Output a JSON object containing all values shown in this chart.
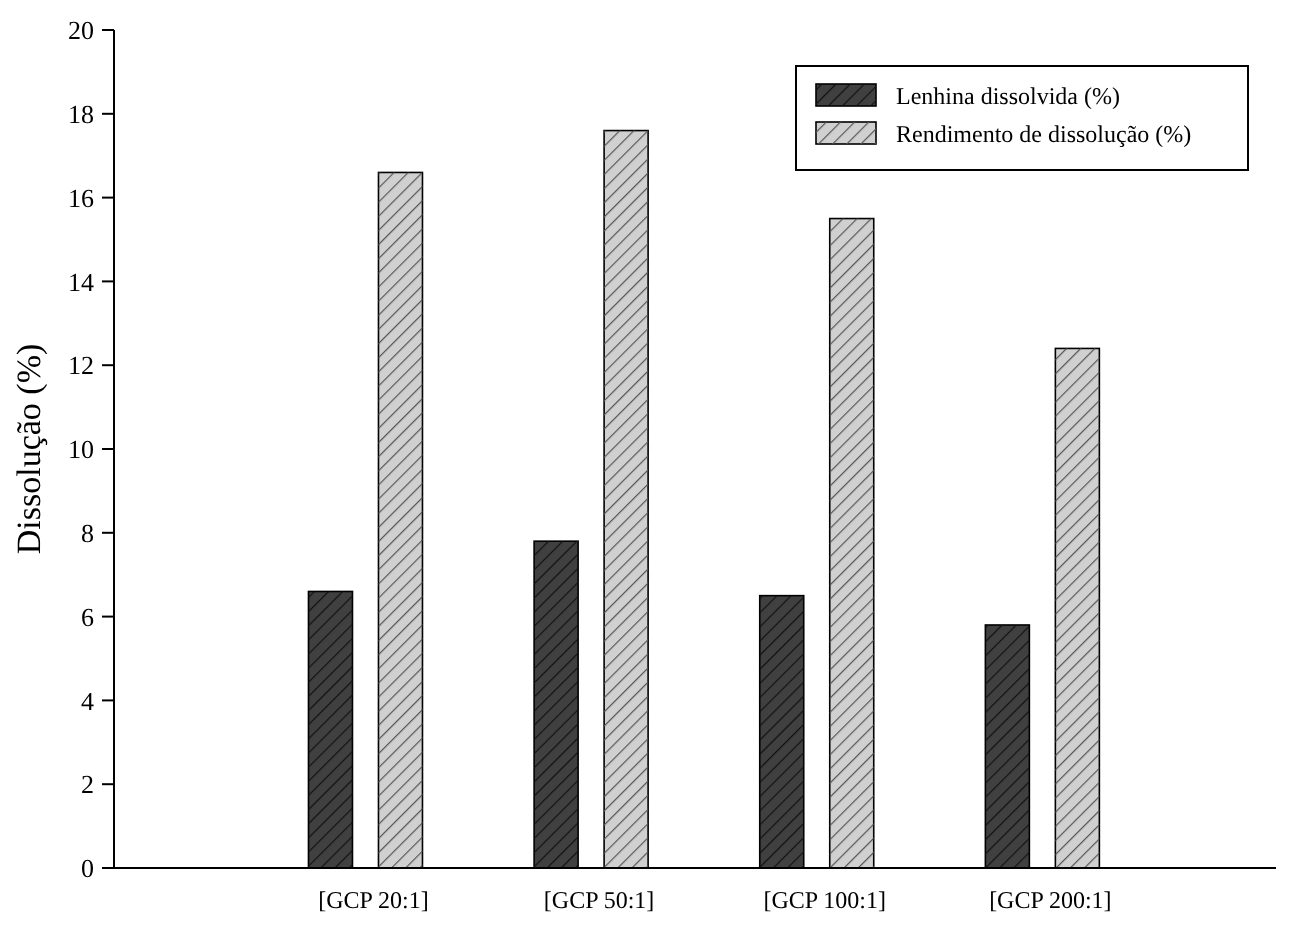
{
  "chart_data": {
    "type": "bar",
    "ylabel": "Dissolução (%)",
    "categories": [
      "[GCP 20:1]",
      "[GCP 50:1]",
      "[GCP 100:1]",
      "[GCP 200:1]"
    ],
    "series": [
      {
        "name": "Lenhina dissolvida (%)",
        "color": "#404040",
        "values": [
          6.6,
          7.8,
          6.5,
          5.8
        ]
      },
      {
        "name": "Rendimento de dissolução (%)",
        "color": "#d0d0d0",
        "values": [
          16.6,
          17.6,
          15.5,
          12.4
        ]
      }
    ],
    "ylim": [
      0,
      20
    ],
    "yticks": [
      0,
      2,
      4,
      6,
      8,
      10,
      12,
      14,
      16,
      18,
      20
    ],
    "grid": false,
    "legend": "top right"
  }
}
